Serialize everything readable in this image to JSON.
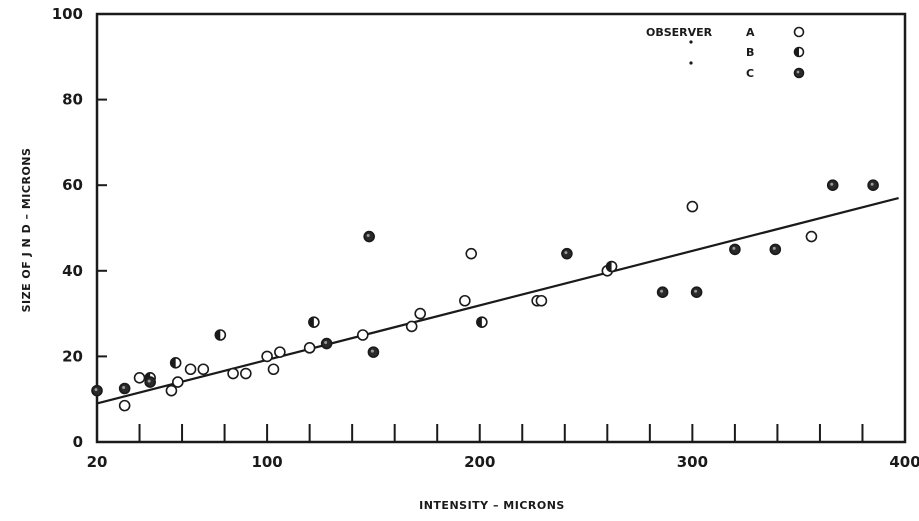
{
  "chart_data": {
    "type": "scatter",
    "xlabel": "INTENSITY – MICRONS",
    "ylabel": "SIZE OF J N D – MICRONS",
    "xlim": [
      20,
      400
    ],
    "ylim": [
      0,
      100
    ],
    "x_tick_labels": [
      "20",
      "100",
      "200",
      "300",
      "400"
    ],
    "x_tick_values": [
      20,
      100,
      200,
      300,
      400
    ],
    "y_tick_labels": [
      "0",
      "20",
      "40",
      "60",
      "80",
      "100"
    ],
    "y_tick_values": [
      0,
      20,
      40,
      60,
      80,
      100
    ],
    "minor_x_ticks": [
      40,
      60,
      80,
      100,
      120,
      140,
      160,
      180,
      200,
      220,
      240,
      260,
      280,
      300,
      320,
      340,
      360,
      380
    ],
    "legend": {
      "title": "OBSERVER",
      "entries": [
        {
          "label": "A",
          "marker": "open"
        },
        {
          "label": "B",
          "marker": "half"
        },
        {
          "label": "C",
          "marker": "filled"
        }
      ]
    },
    "series": [
      {
        "name": "A",
        "marker": "open",
        "points": [
          [
            33,
            8.5
          ],
          [
            40,
            15
          ],
          [
            55,
            12
          ],
          [
            58,
            14
          ],
          [
            64,
            17
          ],
          [
            70,
            17
          ],
          [
            84,
            16
          ],
          [
            90,
            16
          ],
          [
            100,
            20
          ],
          [
            103,
            17
          ],
          [
            106,
            21
          ],
          [
            120,
            22
          ],
          [
            145,
            25
          ],
          [
            168,
            27
          ],
          [
            172,
            30
          ],
          [
            193,
            33
          ],
          [
            196,
            44
          ],
          [
            227,
            33
          ],
          [
            229,
            33
          ],
          [
            260,
            40
          ],
          [
            300,
            55
          ],
          [
            356,
            48
          ]
        ]
      },
      {
        "name": "B",
        "marker": "half",
        "points": [
          [
            45,
            15
          ],
          [
            57,
            18.5
          ],
          [
            78,
            25
          ],
          [
            122,
            28
          ],
          [
            201,
            28
          ],
          [
            262,
            41
          ]
        ]
      },
      {
        "name": "C",
        "marker": "filled",
        "points": [
          [
            20,
            12
          ],
          [
            33,
            12.5
          ],
          [
            45,
            14
          ],
          [
            128,
            23
          ],
          [
            148,
            48
          ],
          [
            150,
            21
          ],
          [
            241,
            44
          ],
          [
            286,
            35
          ],
          [
            302,
            35
          ],
          [
            320,
            45
          ],
          [
            339,
            45
          ],
          [
            366,
            60
          ],
          [
            385,
            60
          ]
        ]
      }
    ],
    "fit_line": {
      "x": [
        20,
        397
      ],
      "y": [
        9,
        57
      ]
    },
    "grid": false
  }
}
